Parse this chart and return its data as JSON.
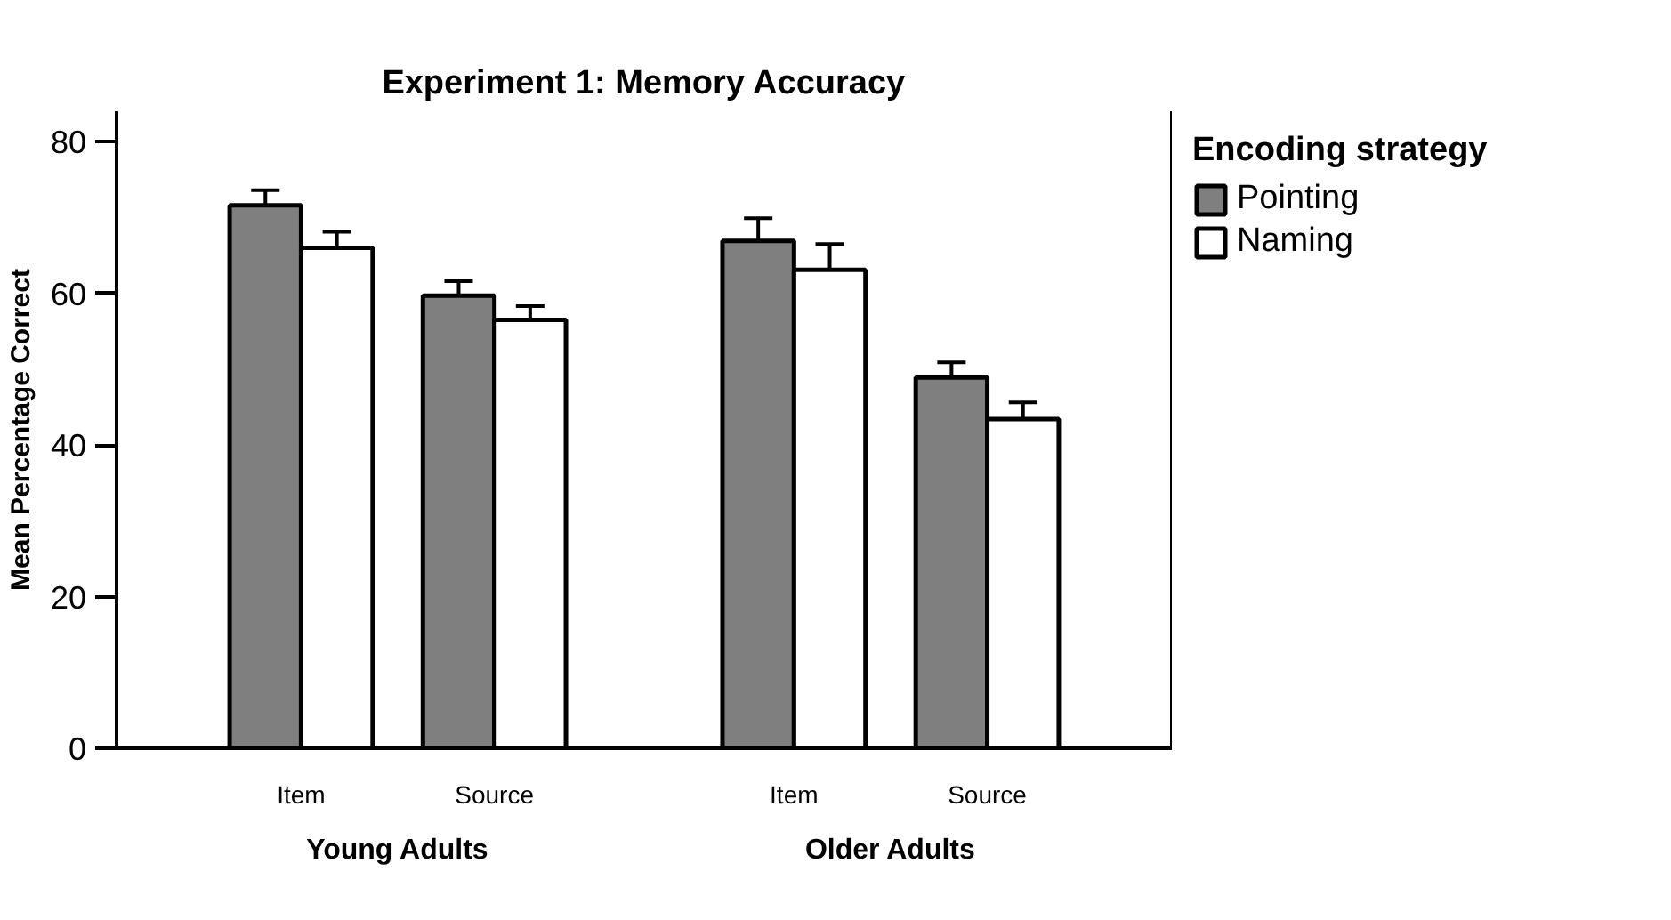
{
  "chart_data": {
    "type": "bar",
    "title": "Experiment 1: Memory Accuracy",
    "ylabel": "Mean Percentage Correct",
    "legend_title": "Encoding strategy",
    "categories": [
      "Item",
      "Source",
      "Item",
      "Source"
    ],
    "annotations": [
      "Young Adults",
      "Older Adults"
    ],
    "series": [
      {
        "name": "Pointing",
        "color": "#7f7f7f",
        "values": [
          71.6,
          59.7,
          66.9,
          48.9
        ],
        "errors": [
          [
            71.6,
            73.6
          ],
          [
            59.7,
            61.6
          ],
          [
            66.9,
            69.9
          ],
          [
            48.9,
            50.9
          ]
        ]
      },
      {
        "name": "Naming",
        "color": "#ffffff",
        "values": [
          66.0,
          56.5,
          63.1,
          43.4
        ],
        "errors": [
          [
            66.0,
            68.1
          ],
          [
            56.5,
            58.3
          ],
          [
            63.1,
            66.5
          ],
          [
            43.4,
            45.6
          ]
        ]
      }
    ],
    "ylim": [
      0,
      84
    ],
    "yticks": [
      0,
      20,
      40,
      60,
      80
    ],
    "grid": false,
    "legend": "top right"
  }
}
